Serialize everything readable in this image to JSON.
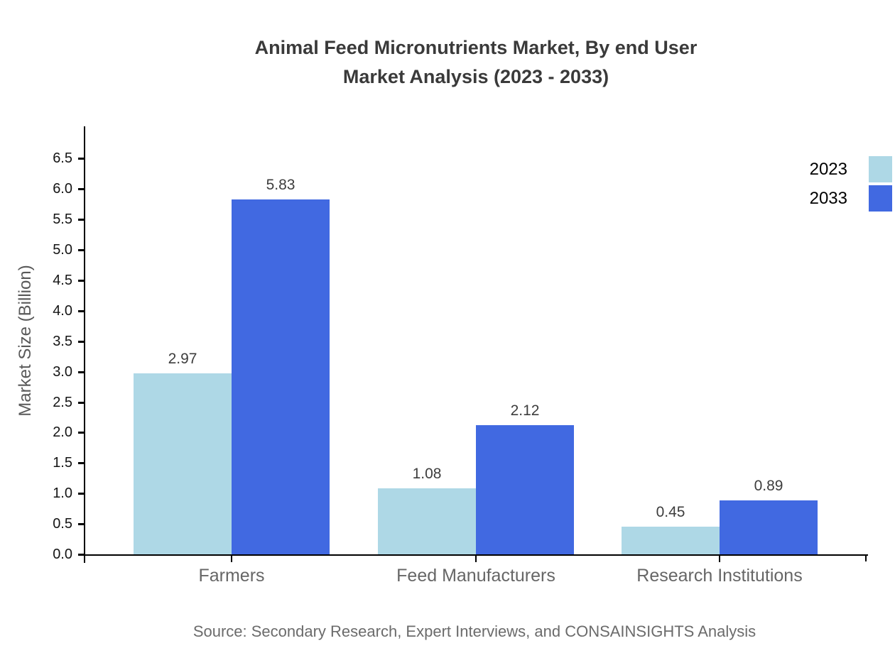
{
  "title": {
    "line1": "Animal Feed Micronutrients Market, By end User",
    "line2": "Market Analysis (2023 - 2033)"
  },
  "source": "Source: Secondary Research, Expert Interviews, and CONSAINSIGHTS Analysis",
  "chart_data": {
    "type": "bar",
    "title": "Animal Feed Micronutrients Market, By end User Market Analysis (2023 - 2033)",
    "categories": [
      "Farmers",
      "Feed Manufacturers",
      "Research Institutions"
    ],
    "series": [
      {
        "name": "2023",
        "color": "#aed8e6",
        "values": [
          2.97,
          1.08,
          0.45
        ]
      },
      {
        "name": "2033",
        "color": "#4169e1",
        "values": [
          5.83,
          2.12,
          0.89
        ]
      }
    ],
    "xlabel": "",
    "ylabel": "Market Size (Billion)",
    "ylim": [
      0,
      7.03
    ],
    "ytick_step": 0.5,
    "yticks": [
      0,
      0.5,
      1,
      1.5,
      2,
      2.5,
      3,
      3.5,
      4,
      4.5,
      5,
      5.5,
      6,
      6.5
    ],
    "grid": false,
    "legend_position": "top-right",
    "value_labels": true,
    "axis_color": "#000000"
  }
}
